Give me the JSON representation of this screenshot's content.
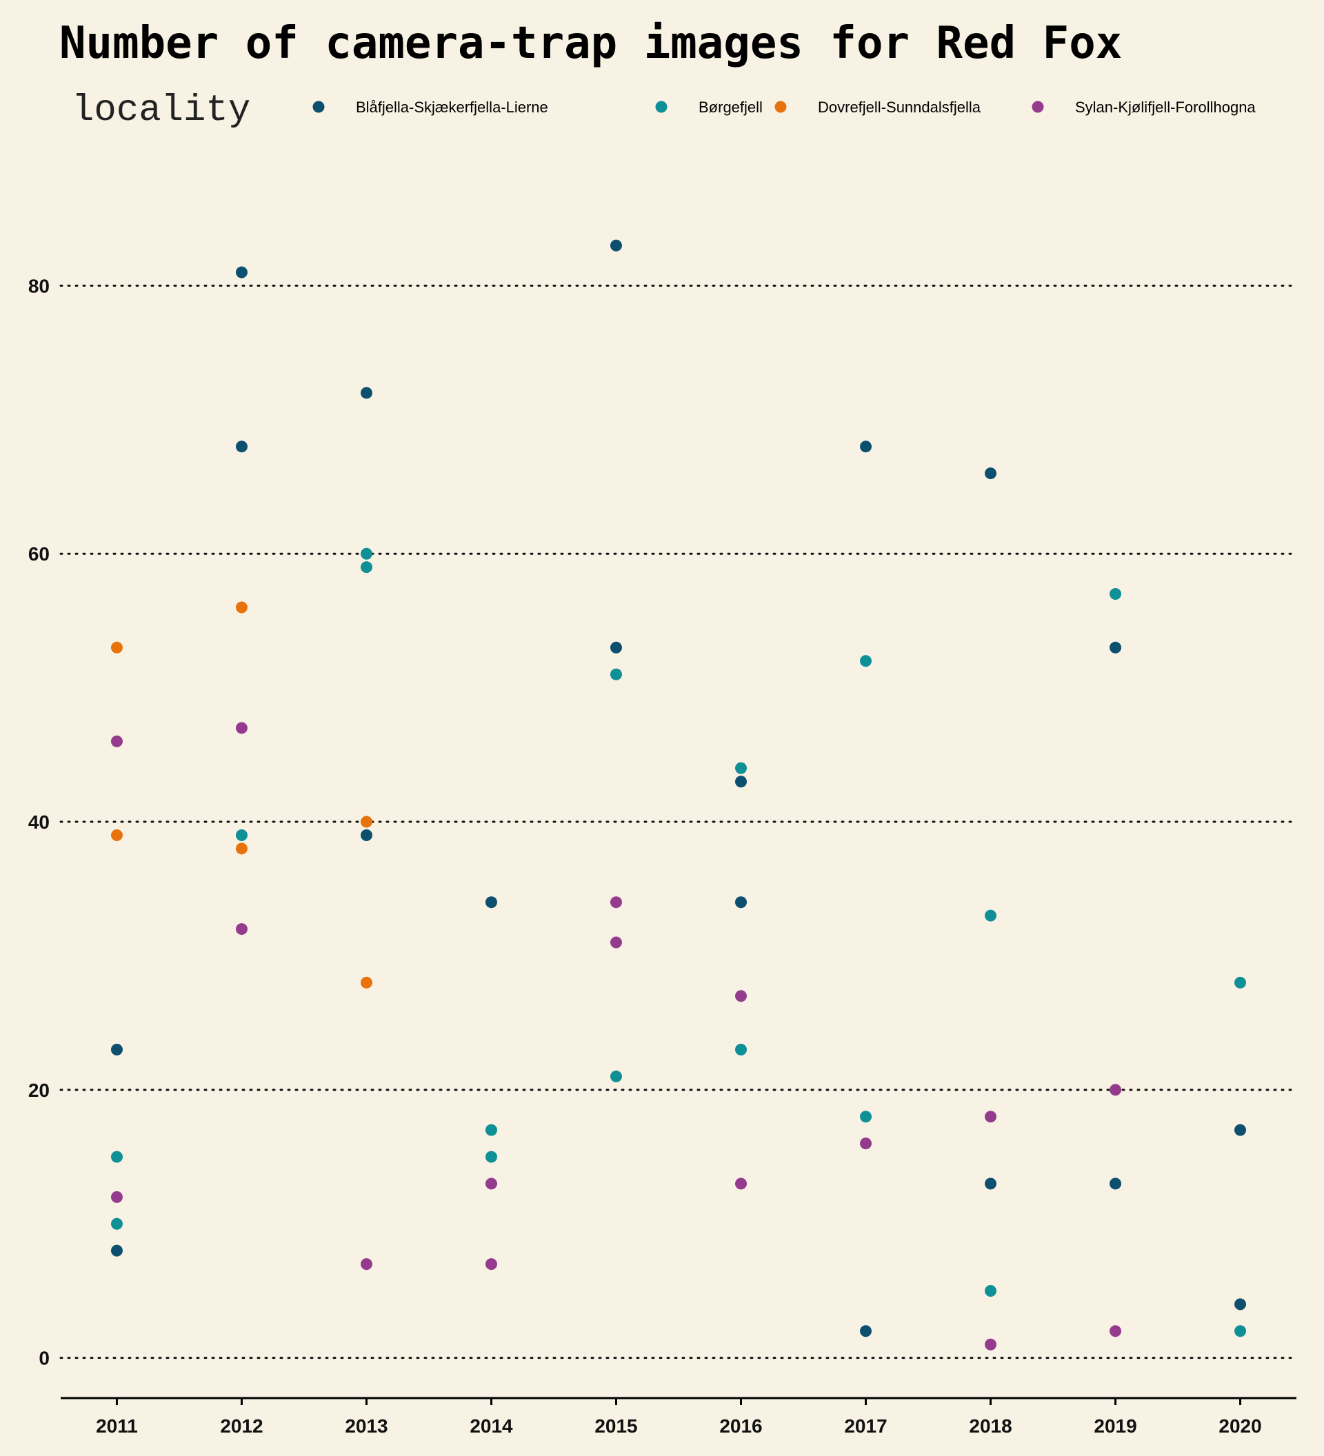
{
  "chart_data": {
    "type": "scatter",
    "title": "Number of camera-trap images for Red Fox",
    "legend_title": "locality",
    "legend_position": "top",
    "xlabel": "",
    "ylabel": "",
    "x_ticks": [
      2011,
      2012,
      2013,
      2014,
      2015,
      2016,
      2017,
      2018,
      2019,
      2020
    ],
    "y_ticks": [
      0,
      20,
      40,
      60,
      80
    ],
    "xlim": [
      2010.55,
      2020.45
    ],
    "ylim": [
      -3,
      90
    ],
    "grid": "horizontal dotted",
    "series": [
      {
        "name": "Blåfjella-Skjækerfjella-Lierne",
        "color": "#0d4f6e",
        "points": [
          [
            2011,
            23
          ],
          [
            2011,
            8
          ],
          [
            2012,
            81
          ],
          [
            2012,
            68
          ],
          [
            2013,
            72
          ],
          [
            2013,
            39
          ],
          [
            2014,
            34
          ],
          [
            2015,
            83
          ],
          [
            2015,
            53
          ],
          [
            2016,
            43
          ],
          [
            2016,
            34
          ],
          [
            2017,
            68
          ],
          [
            2017,
            2
          ],
          [
            2018,
            66
          ],
          [
            2018,
            13
          ],
          [
            2019,
            53
          ],
          [
            2019,
            13
          ],
          [
            2020,
            17
          ],
          [
            2020,
            4
          ]
        ]
      },
      {
        "name": "Børgefjell",
        "color": "#0f8f96",
        "points": [
          [
            2011,
            15
          ],
          [
            2011,
            10
          ],
          [
            2012,
            39
          ],
          [
            2013,
            60
          ],
          [
            2013,
            59
          ],
          [
            2014,
            17
          ],
          [
            2014,
            15
          ],
          [
            2015,
            51
          ],
          [
            2015,
            21
          ],
          [
            2016,
            44
          ],
          [
            2016,
            23
          ],
          [
            2017,
            52
          ],
          [
            2017,
            18
          ],
          [
            2018,
            33
          ],
          [
            2018,
            5
          ],
          [
            2019,
            57
          ],
          [
            2020,
            28
          ],
          [
            2020,
            2
          ]
        ]
      },
      {
        "name": "Dovrefjell-Sunndalsfjella",
        "color": "#e8720c",
        "points": [
          [
            2011,
            53
          ],
          [
            2011,
            39
          ],
          [
            2012,
            56
          ],
          [
            2012,
            38
          ],
          [
            2013,
            40
          ],
          [
            2013,
            28
          ]
        ]
      },
      {
        "name": "Sylan-Kjølifjell-Forollhogna",
        "color": "#953b8e",
        "points": [
          [
            2011,
            46
          ],
          [
            2011,
            12
          ],
          [
            2012,
            47
          ],
          [
            2012,
            32
          ],
          [
            2013,
            7
          ],
          [
            2014,
            13
          ],
          [
            2014,
            7
          ],
          [
            2015,
            34
          ],
          [
            2015,
            31
          ],
          [
            2016,
            27
          ],
          [
            2016,
            13
          ],
          [
            2017,
            16
          ],
          [
            2018,
            18
          ],
          [
            2018,
            1
          ],
          [
            2019,
            20
          ],
          [
            2019,
            2
          ]
        ]
      }
    ]
  }
}
